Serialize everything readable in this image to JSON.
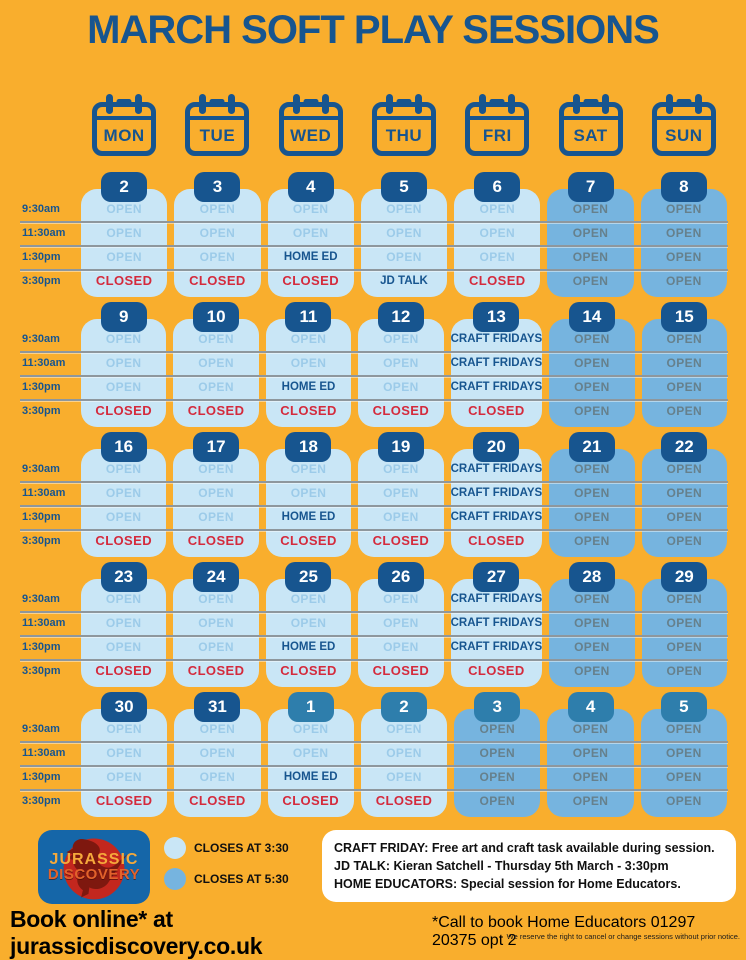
{
  "title": "MARCH SOFT PLAY SESSIONS",
  "days": [
    "MON",
    "TUE",
    "WED",
    "THU",
    "FRI",
    "SAT",
    "SUN"
  ],
  "times": [
    "9:30am",
    "11:30am",
    "1:30pm",
    "3:30pm"
  ],
  "colors": {
    "background": "#F9AE2D",
    "navy": "#17558F",
    "light_cell": "#C9E6F6",
    "dark_cell": "#76B4DF",
    "open_light": "#9CCBE9",
    "open_dark": "#66808C",
    "closed_red": "#D42A3C",
    "april_bubble": "#2E7EAC",
    "divider": "#8E979D",
    "logo_blue": "#1566A8",
    "logo_red": "#C3271E",
    "logo_dino": "#7E180F",
    "logo_text_jurassic": "#F5A93B",
    "logo_text_discovery": "#E2622B"
  },
  "weeks": [
    {
      "dates": [
        {
          "label": "2",
          "month": "march",
          "shade": "light",
          "slots": [
            "OPEN",
            "OPEN",
            "OPEN",
            "CLOSED"
          ]
        },
        {
          "label": "3",
          "month": "march",
          "shade": "light",
          "slots": [
            "OPEN",
            "OPEN",
            "OPEN",
            "CLOSED"
          ]
        },
        {
          "label": "4",
          "month": "march",
          "shade": "light",
          "slots": [
            "OPEN",
            "OPEN",
            "HOME ED",
            "CLOSED"
          ]
        },
        {
          "label": "5",
          "month": "march",
          "shade": "light",
          "slots": [
            "OPEN",
            "OPEN",
            "OPEN",
            "JD TALK"
          ]
        },
        {
          "label": "6",
          "month": "march",
          "shade": "light",
          "slots": [
            "OPEN",
            "OPEN",
            "OPEN",
            "CLOSED"
          ]
        },
        {
          "label": "7",
          "month": "march",
          "shade": "dark",
          "slots": [
            "OPEN",
            "OPEN",
            "OPEN",
            "OPEN"
          ]
        },
        {
          "label": "8",
          "month": "march",
          "shade": "dark",
          "slots": [
            "OPEN",
            "OPEN",
            "OPEN",
            "OPEN"
          ]
        }
      ]
    },
    {
      "dates": [
        {
          "label": "9",
          "month": "march",
          "shade": "light",
          "slots": [
            "OPEN",
            "OPEN",
            "OPEN",
            "CLOSED"
          ]
        },
        {
          "label": "10",
          "month": "march",
          "shade": "light",
          "slots": [
            "OPEN",
            "OPEN",
            "OPEN",
            "CLOSED"
          ]
        },
        {
          "label": "11",
          "month": "march",
          "shade": "light",
          "slots": [
            "OPEN",
            "OPEN",
            "HOME ED",
            "CLOSED"
          ]
        },
        {
          "label": "12",
          "month": "march",
          "shade": "light",
          "slots": [
            "OPEN",
            "OPEN",
            "OPEN",
            "CLOSED"
          ]
        },
        {
          "label": "13",
          "month": "march",
          "shade": "light",
          "slots": [
            "CRAFT FRIDAYS",
            "CRAFT FRIDAYS",
            "CRAFT FRIDAYS",
            "CLOSED"
          ]
        },
        {
          "label": "14",
          "month": "march",
          "shade": "dark",
          "slots": [
            "OPEN",
            "OPEN",
            "OPEN",
            "OPEN"
          ]
        },
        {
          "label": "15",
          "month": "march",
          "shade": "dark",
          "slots": [
            "OPEN",
            "OPEN",
            "OPEN",
            "OPEN"
          ]
        }
      ]
    },
    {
      "dates": [
        {
          "label": "16",
          "month": "march",
          "shade": "light",
          "slots": [
            "OPEN",
            "OPEN",
            "OPEN",
            "CLOSED"
          ]
        },
        {
          "label": "17",
          "month": "march",
          "shade": "light",
          "slots": [
            "OPEN",
            "OPEN",
            "OPEN",
            "CLOSED"
          ]
        },
        {
          "label": "18",
          "month": "march",
          "shade": "light",
          "slots": [
            "OPEN",
            "OPEN",
            "HOME ED",
            "CLOSED"
          ]
        },
        {
          "label": "19",
          "month": "march",
          "shade": "light",
          "slots": [
            "OPEN",
            "OPEN",
            "OPEN",
            "CLOSED"
          ]
        },
        {
          "label": "20",
          "month": "march",
          "shade": "light",
          "slots": [
            "CRAFT FRIDAYS",
            "CRAFT FRIDAYS",
            "CRAFT FRIDAYS",
            "CLOSED"
          ]
        },
        {
          "label": "21",
          "month": "march",
          "shade": "dark",
          "slots": [
            "OPEN",
            "OPEN",
            "OPEN",
            "OPEN"
          ]
        },
        {
          "label": "22",
          "month": "march",
          "shade": "dark",
          "slots": [
            "OPEN",
            "OPEN",
            "OPEN",
            "OPEN"
          ]
        }
      ]
    },
    {
      "dates": [
        {
          "label": "23",
          "month": "march",
          "shade": "light",
          "slots": [
            "OPEN",
            "OPEN",
            "OPEN",
            "CLOSED"
          ]
        },
        {
          "label": "24",
          "month": "march",
          "shade": "light",
          "slots": [
            "OPEN",
            "OPEN",
            "OPEN",
            "CLOSED"
          ]
        },
        {
          "label": "25",
          "month": "march",
          "shade": "light",
          "slots": [
            "OPEN",
            "OPEN",
            "HOME ED",
            "CLOSED"
          ]
        },
        {
          "label": "26",
          "month": "march",
          "shade": "light",
          "slots": [
            "OPEN",
            "OPEN",
            "OPEN",
            "CLOSED"
          ]
        },
        {
          "label": "27",
          "month": "march",
          "shade": "light",
          "slots": [
            "CRAFT FRIDAYS",
            "CRAFT FRIDAYS",
            "CRAFT FRIDAYS",
            "CLOSED"
          ]
        },
        {
          "label": "28",
          "month": "march",
          "shade": "dark",
          "slots": [
            "OPEN",
            "OPEN",
            "OPEN",
            "OPEN"
          ]
        },
        {
          "label": "29",
          "month": "march",
          "shade": "dark",
          "slots": [
            "OPEN",
            "OPEN",
            "OPEN",
            "OPEN"
          ]
        }
      ]
    },
    {
      "dates": [
        {
          "label": "30",
          "month": "march",
          "shade": "light",
          "slots": [
            "OPEN",
            "OPEN",
            "OPEN",
            "CLOSED"
          ]
        },
        {
          "label": "31",
          "month": "march",
          "shade": "light",
          "slots": [
            "OPEN",
            "OPEN",
            "OPEN",
            "CLOSED"
          ]
        },
        {
          "label": "1",
          "month": "april",
          "shade": "light",
          "slots": [
            "OPEN",
            "OPEN",
            "HOME ED",
            "CLOSED"
          ]
        },
        {
          "label": "2",
          "month": "april",
          "shade": "light",
          "slots": [
            "OPEN",
            "OPEN",
            "OPEN",
            "CLOSED"
          ]
        },
        {
          "label": "3",
          "month": "april",
          "shade": "dark",
          "slots": [
            "OPEN",
            "OPEN",
            "OPEN",
            "OPEN"
          ]
        },
        {
          "label": "4",
          "month": "april",
          "shade": "dark",
          "slots": [
            "OPEN",
            "OPEN",
            "OPEN",
            "OPEN"
          ]
        },
        {
          "label": "5",
          "month": "april",
          "shade": "dark",
          "slots": [
            "OPEN",
            "OPEN",
            "OPEN",
            "OPEN"
          ]
        }
      ]
    }
  ],
  "legend": [
    {
      "label": "CLOSES AT 3:30",
      "shade": "light"
    },
    {
      "label": "CLOSES AT 5:30",
      "shade": "dark"
    }
  ],
  "logo": {
    "line1": "JURASSIC",
    "line2": "DISCOVERY"
  },
  "info_box": {
    "lines": [
      "CRAFT FRIDAY: Free art and craft task available during session.",
      "JD TALK: Kieran Satchell - Thursday 5th March - 3:30pm",
      "HOME EDUCATORS: Special session for Home Educators."
    ]
  },
  "footer": {
    "book_online": "Book online* at jurassicdiscovery.co.uk",
    "call_note": "*Call to book Home Educators 01297 20375 opt 2",
    "small_print": "We reserve the right to cancel or change sessions without prior notice."
  }
}
